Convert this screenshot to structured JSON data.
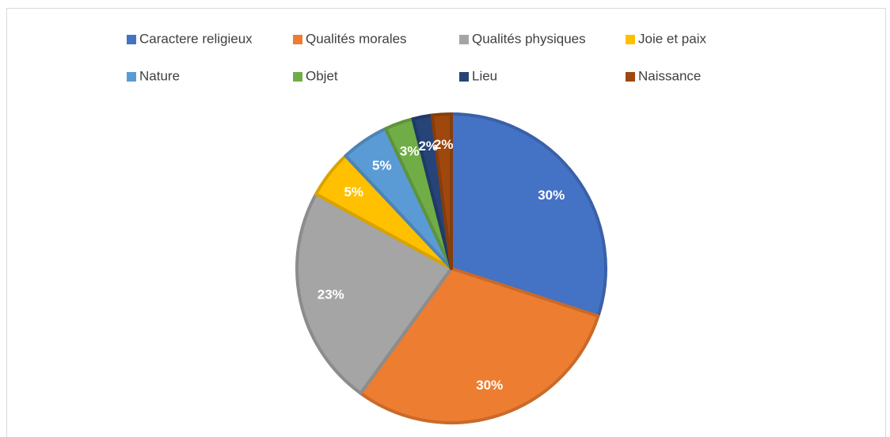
{
  "chart_data": {
    "type": "pie",
    "categories": [
      "Caractere religieux",
      "Qualités morales",
      "Qualités physiques",
      "Joie et paix",
      "Nature",
      "Objet",
      "Lieu",
      "Naissance"
    ],
    "values": [
      30,
      30,
      23,
      5,
      5,
      3,
      2,
      2
    ],
    "value_labels": [
      "30%",
      "30%",
      "23%",
      "5%",
      "5%",
      "3%",
      "2%",
      "2%"
    ],
    "colors": [
      "#4472c4",
      "#ed7d31",
      "#a5a5a5",
      "#ffc000",
      "#5b9bd5",
      "#70ad47",
      "#264478",
      "#9e480e"
    ],
    "legend": "top"
  }
}
